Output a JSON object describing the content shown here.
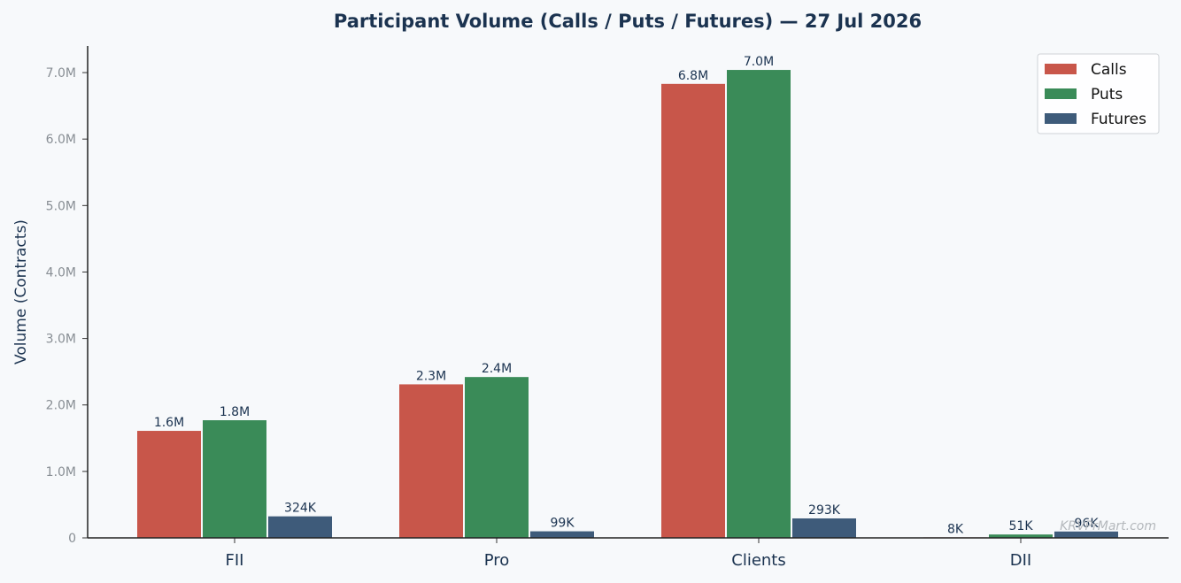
{
  "chart_data": {
    "type": "bar",
    "title": "Participant Volume (Calls / Puts / Futures) — 27 Jul 2026",
    "xlabel": "",
    "ylabel": "Volume (Contracts)",
    "categories": [
      "FII",
      "Pro",
      "Clients",
      "DII"
    ],
    "series": [
      {
        "name": "Calls",
        "color": "#c8564a",
        "values": [
          1610000,
          2310000,
          6830000,
          8000
        ],
        "labels": [
          "1.6M",
          "2.3M",
          "6.8M",
          "8K"
        ]
      },
      {
        "name": "Puts",
        "color": "#3a8b58",
        "values": [
          1770000,
          2420000,
          7040000,
          51000
        ],
        "labels": [
          "1.8M",
          "2.4M",
          "7.0M",
          "51K"
        ]
      },
      {
        "name": "Futures",
        "color": "#3e5b7a",
        "values": [
          324000,
          99000,
          293000,
          96000
        ],
        "labels": [
          "324K",
          "99K",
          "293K",
          "96K"
        ]
      }
    ],
    "ylim": [
      0,
      7400000
    ],
    "yticks": [
      0,
      1000000,
      2000000,
      3000000,
      4000000,
      5000000,
      6000000,
      7000000
    ],
    "ytick_labels": [
      "0",
      "1.0M",
      "2.0M",
      "3.0M",
      "4.0M",
      "5.0M",
      "6.0M",
      "7.0M"
    ],
    "grid": false,
    "legend_position": "top-right"
  },
  "watermark": "KRVPrMart.com"
}
